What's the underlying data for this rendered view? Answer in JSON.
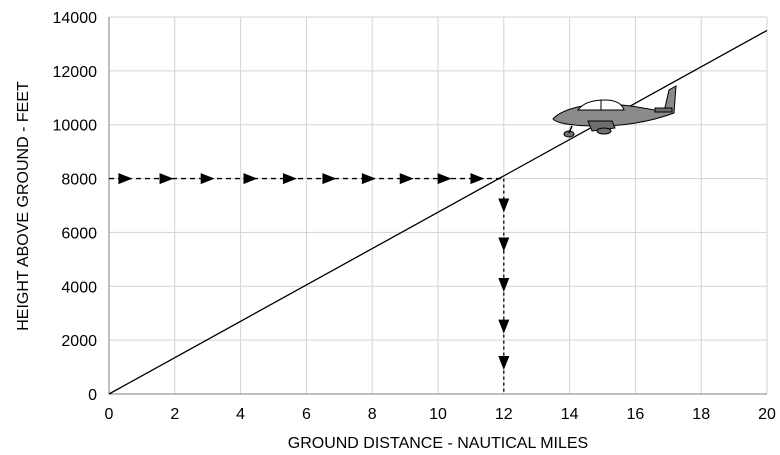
{
  "chart_data": {
    "type": "line",
    "title": "",
    "xlabel": "GROUND DISTANCE - NAUTICAL MILES",
    "ylabel": "HEIGHT ABOVE GROUND - FEET",
    "xlim": [
      0,
      20
    ],
    "ylim": [
      0,
      14000
    ],
    "x_ticks": [
      0,
      2,
      4,
      6,
      8,
      10,
      12,
      14,
      16,
      18,
      20
    ],
    "y_ticks": [
      0,
      2000,
      4000,
      6000,
      8000,
      10000,
      12000,
      14000
    ],
    "grid": true,
    "series": [
      {
        "x": [
          0,
          20
        ],
        "y": [
          0,
          13500
        ],
        "color": "#000000"
      }
    ],
    "reference_path": {
      "horizontal": {
        "x": [
          0,
          12
        ],
        "y": 8000,
        "arrow_direction": "right",
        "arrow_x": [
          0.5,
          1.75,
          3.0,
          4.3,
          5.5,
          6.7,
          7.9,
          9.05,
          10.2,
          11.2
        ]
      },
      "vertical": {
        "x": 12,
        "y": [
          8000,
          0
        ],
        "arrow_direction": "down",
        "arrow_y": [
          7000,
          5550,
          4050,
          2500,
          1150
        ]
      }
    },
    "annotation_icon": "airplane-icon",
    "colors": {
      "grid": "#d3d3d3",
      "line": "#000000",
      "airplane": "#888888"
    }
  }
}
